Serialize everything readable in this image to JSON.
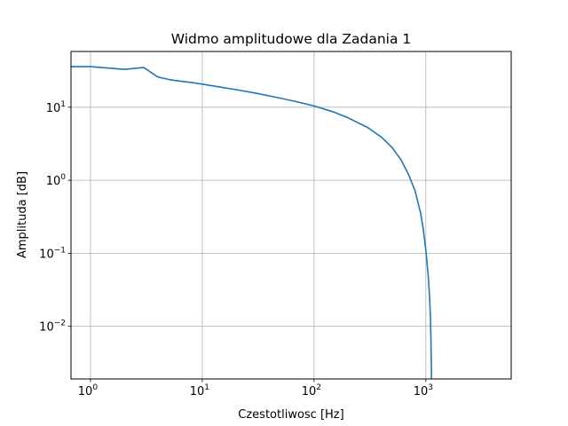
{
  "chart_data": {
    "type": "line",
    "title": "Widmo amplitudowe dla Zadania 1",
    "xlabel": "Czestotliwosc [Hz]",
    "ylabel": "Amplituda [dB]",
    "xscale": "log",
    "yscale": "log",
    "xlim": [
      0.67,
      5800
    ],
    "ylim": [
      0.0019,
      58
    ],
    "grid": true,
    "line_color": "#1f77b4",
    "x_ticks": [
      {
        "base": "10",
        "exp": "0",
        "value": 1
      },
      {
        "base": "10",
        "exp": "1",
        "value": 10
      },
      {
        "base": "10",
        "exp": "2",
        "value": 100
      },
      {
        "base": "10",
        "exp": "3",
        "value": 1000
      }
    ],
    "y_ticks": [
      {
        "base": "10",
        "exp": "−2",
        "value": 0.01
      },
      {
        "base": "10",
        "exp": "−1",
        "value": 0.1
      },
      {
        "base": "10",
        "exp": "0",
        "value": 1
      },
      {
        "base": "10",
        "exp": "1",
        "value": 10
      }
    ],
    "series": [
      {
        "x": [
          0.6,
          1,
          2,
          3,
          4,
          5,
          6,
          8,
          10,
          15,
          20,
          30,
          50,
          70,
          100,
          150,
          200,
          300,
          400,
          500,
          600,
          700,
          800,
          900,
          950,
          1000,
          1050,
          1080,
          1100,
          1110,
          1120,
          1125
        ],
        "y": [
          36,
          36,
          33,
          35,
          26,
          24,
          23,
          21.8,
          20.7,
          18.7,
          17.4,
          15.6,
          13.3,
          11.9,
          10.4,
          8.6,
          7.2,
          5.3,
          3.9,
          2.8,
          1.9,
          1.2,
          0.72,
          0.35,
          0.21,
          0.11,
          0.05,
          0.025,
          0.013,
          0.007,
          0.003,
          0.0012
        ]
      }
    ]
  }
}
